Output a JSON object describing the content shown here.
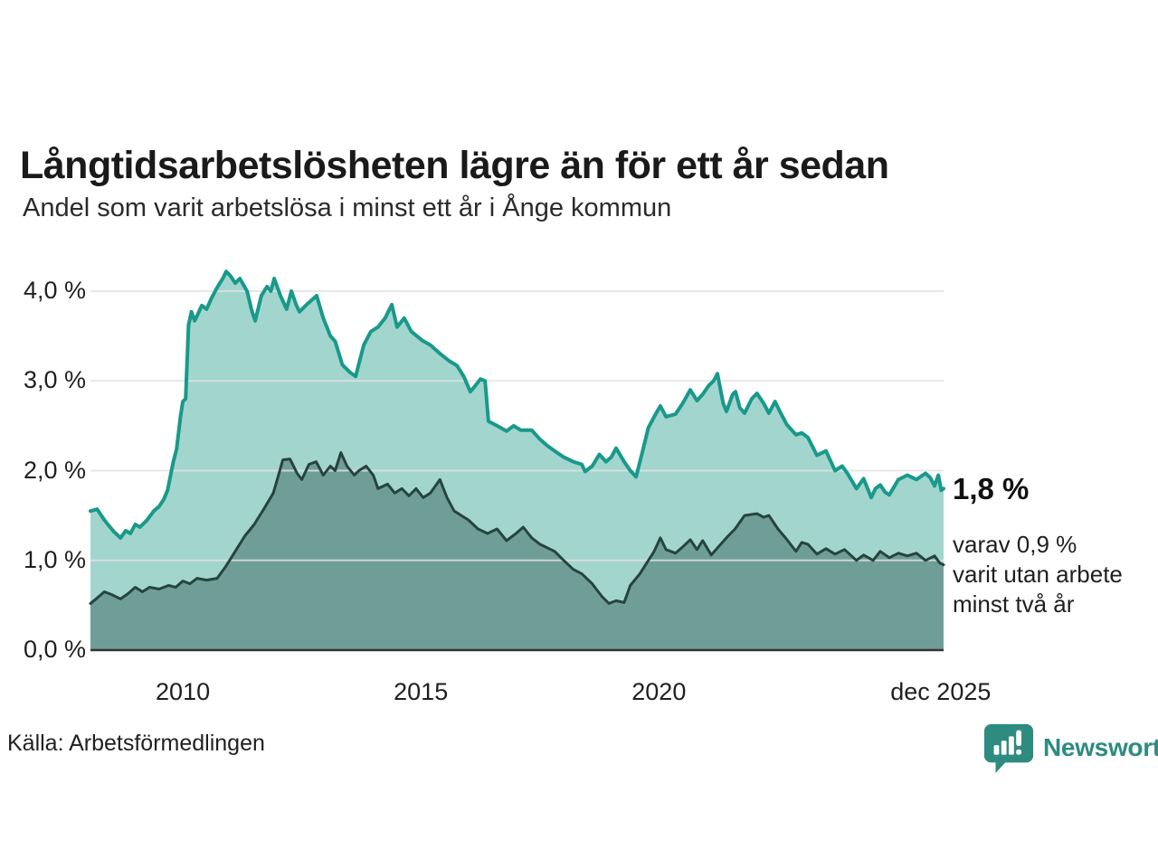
{
  "header": {
    "title": "Långtidsarbetslösheten lägre än för ett år sedan",
    "subtitle": "Andel som varit arbetslösa i minst ett år i Ånge kommun"
  },
  "chart_data": {
    "type": "area",
    "title": "Långtidsarbetslösheten lägre än för ett år sedan",
    "subtitle": "Andel som varit arbetslösa i minst ett år i Ånge kommun",
    "unit": "%",
    "x_domain": [
      2008.06,
      2025.98
    ],
    "ylim": [
      0,
      4.5
    ],
    "grid": true,
    "grid_color": "#e2e2e2",
    "axis_line_color": "#333333",
    "y_axis": {
      "ticks": [
        {
          "value": 4,
          "label": "4,0 %"
        },
        {
          "value": 3,
          "label": "3,0 %"
        },
        {
          "value": 2,
          "label": "2,0 %"
        },
        {
          "value": 1,
          "label": "1,0 %"
        },
        {
          "value": 0,
          "label": "0,0 %"
        }
      ]
    },
    "x_axis": {
      "ticks": [
        {
          "year": 2010,
          "label": "2010"
        },
        {
          "year": 2015,
          "label": "2015"
        },
        {
          "year": 2020,
          "label": "2020"
        },
        {
          "year": 2025.92,
          "label": "dec 2025"
        }
      ]
    },
    "series": [
      {
        "name": "Andel som varit arbetslösa i minst ett år",
        "line_color": "#19998a",
        "fill_color": "#a2d5ce",
        "line_width": 4,
        "end_value": 1.8,
        "points": [
          [
            2008.06,
            1.55
          ],
          [
            2008.2,
            1.57
          ],
          [
            2008.35,
            1.45
          ],
          [
            2008.55,
            1.32
          ],
          [
            2008.69,
            1.25
          ],
          [
            2008.8,
            1.33
          ],
          [
            2008.9,
            1.3
          ],
          [
            2009.0,
            1.4
          ],
          [
            2009.1,
            1.37
          ],
          [
            2009.25,
            1.45
          ],
          [
            2009.39,
            1.55
          ],
          [
            2009.5,
            1.6
          ],
          [
            2009.6,
            1.68
          ],
          [
            2009.68,
            1.78
          ],
          [
            2009.8,
            2.1
          ],
          [
            2009.87,
            2.24
          ],
          [
            2009.95,
            2.6
          ],
          [
            2010.0,
            2.77
          ],
          [
            2010.06,
            2.8
          ],
          [
            2010.12,
            3.62
          ],
          [
            2010.18,
            3.77
          ],
          [
            2010.25,
            3.67
          ],
          [
            2010.4,
            3.84
          ],
          [
            2010.5,
            3.8
          ],
          [
            2010.6,
            3.92
          ],
          [
            2010.72,
            4.04
          ],
          [
            2010.85,
            4.15
          ],
          [
            2010.91,
            4.22
          ],
          [
            2011.0,
            4.17
          ],
          [
            2011.1,
            4.09
          ],
          [
            2011.2,
            4.14
          ],
          [
            2011.35,
            4.0
          ],
          [
            2011.45,
            3.78
          ],
          [
            2011.52,
            3.67
          ],
          [
            2011.65,
            3.95
          ],
          [
            2011.77,
            4.05
          ],
          [
            2011.85,
            4.0
          ],
          [
            2011.92,
            4.14
          ],
          [
            2012.05,
            3.95
          ],
          [
            2012.18,
            3.8
          ],
          [
            2012.28,
            4.0
          ],
          [
            2012.38,
            3.85
          ],
          [
            2012.45,
            3.77
          ],
          [
            2012.6,
            3.85
          ],
          [
            2012.75,
            3.92
          ],
          [
            2012.81,
            3.95
          ],
          [
            2012.95,
            3.7
          ],
          [
            2013.1,
            3.5
          ],
          [
            2013.2,
            3.44
          ],
          [
            2013.35,
            3.18
          ],
          [
            2013.5,
            3.1
          ],
          [
            2013.63,
            3.05
          ],
          [
            2013.8,
            3.4
          ],
          [
            2013.95,
            3.55
          ],
          [
            2014.1,
            3.6
          ],
          [
            2014.25,
            3.7
          ],
          [
            2014.39,
            3.85
          ],
          [
            2014.5,
            3.6
          ],
          [
            2014.65,
            3.7
          ],
          [
            2014.8,
            3.55
          ],
          [
            2015.03,
            3.45
          ],
          [
            2015.2,
            3.4
          ],
          [
            2015.41,
            3.3
          ],
          [
            2015.6,
            3.22
          ],
          [
            2015.76,
            3.17
          ],
          [
            2015.9,
            3.05
          ],
          [
            2016.04,
            2.88
          ],
          [
            2016.15,
            2.95
          ],
          [
            2016.25,
            3.02
          ],
          [
            2016.35,
            3.0
          ],
          [
            2016.42,
            2.55
          ],
          [
            2016.6,
            2.5
          ],
          [
            2016.8,
            2.44
          ],
          [
            2016.95,
            2.5
          ],
          [
            2017.1,
            2.45
          ],
          [
            2017.33,
            2.45
          ],
          [
            2017.5,
            2.35
          ],
          [
            2017.65,
            2.28
          ],
          [
            2017.81,
            2.22
          ],
          [
            2018.0,
            2.15
          ],
          [
            2018.2,
            2.1
          ],
          [
            2018.38,
            2.07
          ],
          [
            2018.45,
            1.99
          ],
          [
            2018.6,
            2.05
          ],
          [
            2018.75,
            2.18
          ],
          [
            2018.89,
            2.1
          ],
          [
            2019.0,
            2.15
          ],
          [
            2019.1,
            2.25
          ],
          [
            2019.27,
            2.1
          ],
          [
            2019.4,
            2.0
          ],
          [
            2019.52,
            1.93
          ],
          [
            2019.65,
            2.2
          ],
          [
            2019.78,
            2.48
          ],
          [
            2019.9,
            2.6
          ],
          [
            2020.03,
            2.72
          ],
          [
            2020.15,
            2.6
          ],
          [
            2020.35,
            2.63
          ],
          [
            2020.5,
            2.75
          ],
          [
            2020.66,
            2.9
          ],
          [
            2020.8,
            2.78
          ],
          [
            2020.92,
            2.85
          ],
          [
            2021.05,
            2.95
          ],
          [
            2021.15,
            3.0
          ],
          [
            2021.23,
            3.08
          ],
          [
            2021.35,
            2.75
          ],
          [
            2021.42,
            2.66
          ],
          [
            2021.55,
            2.85
          ],
          [
            2021.61,
            2.88
          ],
          [
            2021.7,
            2.7
          ],
          [
            2021.8,
            2.64
          ],
          [
            2021.95,
            2.8
          ],
          [
            2022.06,
            2.86
          ],
          [
            2022.2,
            2.75
          ],
          [
            2022.31,
            2.64
          ],
          [
            2022.44,
            2.77
          ],
          [
            2022.55,
            2.65
          ],
          [
            2022.69,
            2.51
          ],
          [
            2022.88,
            2.4
          ],
          [
            2023.0,
            2.42
          ],
          [
            2023.13,
            2.37
          ],
          [
            2023.32,
            2.17
          ],
          [
            2023.51,
            2.22
          ],
          [
            2023.7,
            2.0
          ],
          [
            2023.85,
            2.05
          ],
          [
            2023.96,
            1.97
          ],
          [
            2024.15,
            1.8
          ],
          [
            2024.3,
            1.91
          ],
          [
            2024.46,
            1.7
          ],
          [
            2024.55,
            1.8
          ],
          [
            2024.65,
            1.84
          ],
          [
            2024.75,
            1.76
          ],
          [
            2024.84,
            1.73
          ],
          [
            2025.03,
            1.9
          ],
          [
            2025.22,
            1.95
          ],
          [
            2025.41,
            1.9
          ],
          [
            2025.6,
            1.97
          ],
          [
            2025.7,
            1.92
          ],
          [
            2025.79,
            1.83
          ],
          [
            2025.87,
            1.95
          ],
          [
            2025.93,
            1.78
          ],
          [
            2025.98,
            1.8
          ]
        ]
      },
      {
        "name": "varav varit utan arbete minst två år",
        "line_color": "#26443f",
        "fill_color": "#6f9e98",
        "line_width": 3,
        "end_value": 0.9,
        "points": [
          [
            2008.06,
            0.52
          ],
          [
            2008.2,
            0.58
          ],
          [
            2008.35,
            0.65
          ],
          [
            2008.5,
            0.62
          ],
          [
            2008.69,
            0.57
          ],
          [
            2008.85,
            0.63
          ],
          [
            2009.0,
            0.7
          ],
          [
            2009.15,
            0.65
          ],
          [
            2009.3,
            0.7
          ],
          [
            2009.5,
            0.68
          ],
          [
            2009.7,
            0.72
          ],
          [
            2009.85,
            0.7
          ],
          [
            2010.0,
            0.77
          ],
          [
            2010.15,
            0.74
          ],
          [
            2010.3,
            0.8
          ],
          [
            2010.5,
            0.78
          ],
          [
            2010.72,
            0.8
          ],
          [
            2010.9,
            0.93
          ],
          [
            2011.1,
            1.1
          ],
          [
            2011.3,
            1.27
          ],
          [
            2011.5,
            1.4
          ],
          [
            2011.7,
            1.57
          ],
          [
            2011.9,
            1.75
          ],
          [
            2012.0,
            1.93
          ],
          [
            2012.1,
            2.12
          ],
          [
            2012.25,
            2.13
          ],
          [
            2012.4,
            1.97
          ],
          [
            2012.5,
            1.9
          ],
          [
            2012.65,
            2.07
          ],
          [
            2012.8,
            2.1
          ],
          [
            2012.95,
            1.95
          ],
          [
            2013.1,
            2.05
          ],
          [
            2013.2,
            2.0
          ],
          [
            2013.32,
            2.2
          ],
          [
            2013.45,
            2.05
          ],
          [
            2013.6,
            1.95
          ],
          [
            2013.7,
            2.0
          ],
          [
            2013.85,
            2.05
          ],
          [
            2014.0,
            1.95
          ],
          [
            2014.1,
            1.8
          ],
          [
            2014.3,
            1.85
          ],
          [
            2014.45,
            1.75
          ],
          [
            2014.6,
            1.8
          ],
          [
            2014.75,
            1.72
          ],
          [
            2014.9,
            1.8
          ],
          [
            2015.05,
            1.7
          ],
          [
            2015.2,
            1.75
          ],
          [
            2015.4,
            1.9
          ],
          [
            2015.55,
            1.7
          ],
          [
            2015.7,
            1.55
          ],
          [
            2015.85,
            1.5
          ],
          [
            2016.0,
            1.45
          ],
          [
            2016.2,
            1.35
          ],
          [
            2016.4,
            1.3
          ],
          [
            2016.6,
            1.35
          ],
          [
            2016.8,
            1.22
          ],
          [
            2017.0,
            1.3
          ],
          [
            2017.15,
            1.37
          ],
          [
            2017.33,
            1.25
          ],
          [
            2017.5,
            1.18
          ],
          [
            2017.81,
            1.1
          ],
          [
            2018.0,
            1.0
          ],
          [
            2018.2,
            0.9
          ],
          [
            2018.38,
            0.85
          ],
          [
            2018.6,
            0.74
          ],
          [
            2018.8,
            0.6
          ],
          [
            2018.95,
            0.52
          ],
          [
            2019.1,
            0.55
          ],
          [
            2019.27,
            0.53
          ],
          [
            2019.4,
            0.72
          ],
          [
            2019.6,
            0.85
          ],
          [
            2019.78,
            1.0
          ],
          [
            2019.9,
            1.1
          ],
          [
            2020.03,
            1.25
          ],
          [
            2020.15,
            1.12
          ],
          [
            2020.35,
            1.08
          ],
          [
            2020.5,
            1.15
          ],
          [
            2020.66,
            1.23
          ],
          [
            2020.8,
            1.12
          ],
          [
            2020.92,
            1.22
          ],
          [
            2021.1,
            1.06
          ],
          [
            2021.3,
            1.18
          ],
          [
            2021.45,
            1.27
          ],
          [
            2021.6,
            1.35
          ],
          [
            2021.8,
            1.5
          ],
          [
            2022.06,
            1.52
          ],
          [
            2022.2,
            1.48
          ],
          [
            2022.31,
            1.5
          ],
          [
            2022.5,
            1.35
          ],
          [
            2022.69,
            1.23
          ],
          [
            2022.88,
            1.1
          ],
          [
            2023.0,
            1.2
          ],
          [
            2023.13,
            1.18
          ],
          [
            2023.32,
            1.07
          ],
          [
            2023.51,
            1.13
          ],
          [
            2023.7,
            1.07
          ],
          [
            2023.9,
            1.12
          ],
          [
            2024.15,
            1.0
          ],
          [
            2024.3,
            1.06
          ],
          [
            2024.5,
            1.0
          ],
          [
            2024.65,
            1.1
          ],
          [
            2024.84,
            1.03
          ],
          [
            2025.03,
            1.08
          ],
          [
            2025.22,
            1.05
          ],
          [
            2025.41,
            1.08
          ],
          [
            2025.6,
            1.0
          ],
          [
            2025.79,
            1.05
          ],
          [
            2025.9,
            0.97
          ],
          [
            2025.98,
            0.95
          ]
        ]
      }
    ],
    "annotations": {
      "end_value_label": "1,8 %",
      "note_lines": [
        "varav 0,9 %",
        "varit utan arbete",
        "minst två år"
      ]
    }
  },
  "footer": {
    "source": "Källa: Arbetsförmedlingen",
    "brand": "Newsworthy",
    "brand_color": "#2e8b80"
  }
}
